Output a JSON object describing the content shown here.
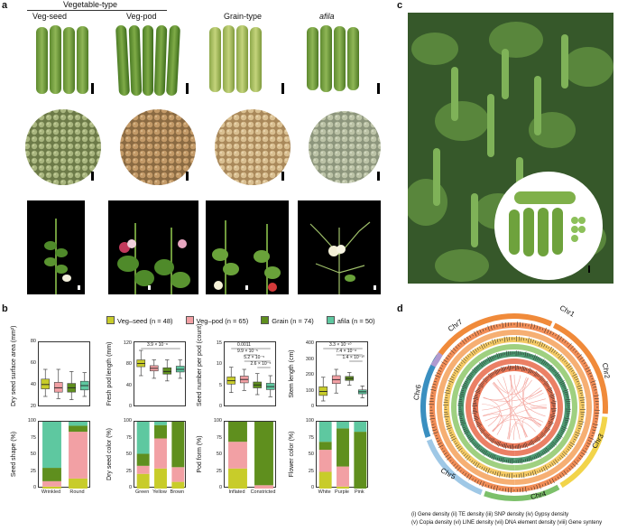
{
  "panel_a": {
    "letter": "a",
    "header_main": "Vegetable-type",
    "columns": [
      "Veg-seed",
      "Veg-pod",
      "Grain-type",
      "afila"
    ]
  },
  "panel_b": {
    "letter": "b",
    "legend": [
      {
        "label": "Veg–seed (n = 48)",
        "color": "#c8cc2a"
      },
      {
        "label": "Veg–pod (n = 65)",
        "color": "#f2a0a4"
      },
      {
        "label": "Grain (n = 74)",
        "color": "#5f8f1e"
      },
      {
        "label": "afila (n = 50)",
        "color": "#5ec8a0"
      }
    ]
  },
  "panel_c": {
    "letter": "c"
  },
  "panel_d": {
    "letter": "d",
    "chromosomes": [
      "Chr1",
      "Chr2",
      "Chr3",
      "Chr4",
      "Chr5",
      "Chr6",
      "Chr7"
    ],
    "track_labels": [
      "(i)",
      "(ii)",
      "(iii)",
      "(iv)",
      "(v)",
      "(vi)",
      "(vii)",
      "(viii)"
    ],
    "caption_line1": "(i) Gene density   (ii) TE density   (iii) SNP density   (iv) Gypsy density",
    "caption_line2": "(v) Copia density (vi) LINE density (vii) DNA element density  (viii) Gene synteny"
  },
  "chart_data": [
    {
      "type": "box",
      "ylabel": "Dry seed surface area (mm²)",
      "ylim": [
        20,
        80
      ],
      "yticks": [
        20,
        40,
        60,
        80
      ],
      "groups": [
        {
          "min": 30,
          "q1": 37,
          "median": 41,
          "q3": 46,
          "max": 55
        },
        {
          "min": 28,
          "q1": 34,
          "median": 38,
          "q3": 43,
          "max": 55
        },
        {
          "min": 27,
          "q1": 34,
          "median": 38,
          "q3": 42,
          "max": 53
        },
        {
          "min": 30,
          "q1": 36,
          "median": 40,
          "q3": 44,
          "max": 52
        }
      ],
      "pvalues": []
    },
    {
      "type": "box",
      "ylabel": "Fresh pod length (mm)",
      "ylim": [
        0,
        120
      ],
      "yticks": [
        0,
        40,
        80,
        120
      ],
      "groups": [
        {
          "min": 60,
          "q1": 77,
          "median": 83,
          "q3": 90,
          "max": 108
        },
        {
          "min": 55,
          "q1": 69,
          "median": 74,
          "q3": 79,
          "max": 90
        },
        {
          "min": 50,
          "q1": 63,
          "median": 68,
          "q3": 75,
          "max": 90
        },
        {
          "min": 55,
          "q1": 67,
          "median": 72,
          "q3": 78,
          "max": 90
        }
      ],
      "pvalues": [
        {
          "text": "3.9 × 10⁻⁸",
          "from": 0,
          "to": 3
        }
      ]
    },
    {
      "type": "box",
      "ylabel": "Seed number per pod (count)",
      "ylim": [
        0,
        15
      ],
      "yticks": [
        0,
        5,
        10,
        15
      ],
      "groups": [
        {
          "min": 3.5,
          "q1": 5.5,
          "median": 6.3,
          "q3": 7.2,
          "max": 9.5
        },
        {
          "min": 4,
          "q1": 5.8,
          "median": 6.6,
          "q3": 7.4,
          "max": 9
        },
        {
          "min": 3,
          "q1": 4.6,
          "median": 5.3,
          "q3": 6,
          "max": 8
        },
        {
          "min": 2.5,
          "q1": 4.2,
          "median": 4.9,
          "q3": 5.7,
          "max": 7.5
        }
      ],
      "pvalues": [
        {
          "text": "0.0011",
          "from": 0,
          "to": 3
        },
        {
          "text": "9.9 × 10⁻⁵",
          "from": 1,
          "to": 2
        },
        {
          "text": "5.2 × 10⁻⁵",
          "from": 1,
          "to": 3
        },
        {
          "text": "2.6 × 10⁻⁵",
          "from": 2,
          "to": 3
        }
      ]
    },
    {
      "type": "box",
      "ylabel": "Stem length (cm)",
      "ylim": [
        0,
        400
      ],
      "yticks": [
        0,
        100,
        200,
        300,
        400
      ],
      "groups": [
        {
          "min": 40,
          "q1": 75,
          "median": 100,
          "q3": 130,
          "max": 190
        },
        {
          "min": 90,
          "q1": 150,
          "median": 175,
          "q3": 200,
          "max": 240
        },
        {
          "min": 140,
          "q1": 170,
          "median": 182,
          "q3": 195,
          "max": 220
        },
        {
          "min": 60,
          "q1": 85,
          "median": 98,
          "q3": 110,
          "max": 135
        }
      ],
      "pvalues": [
        {
          "text": "3.3 × 10⁻¹⁰",
          "from": 0,
          "to": 3
        },
        {
          "text": "7.4 × 10⁻⁸",
          "from": 1,
          "to": 3
        },
        {
          "text": "1.4 × 10⁻¹⁰",
          "from": 2,
          "to": 3
        }
      ]
    },
    {
      "type": "stacked-bar",
      "ylabel": "Seed shape (%)",
      "categories": [
        "Wrinkled",
        "Round"
      ],
      "yticks": [
        0,
        25,
        50,
        75,
        100
      ],
      "values": [
        [
          3,
          8,
          20,
          69
        ],
        [
          15,
          70,
          9,
          6
        ]
      ]
    },
    {
      "type": "stacked-bar",
      "ylabel": "Dry seed color (%)",
      "categories": [
        "Green",
        "Yellow",
        "Brown"
      ],
      "yticks": [
        0,
        25,
        50,
        75,
        100
      ],
      "values": [
        [
          22,
          12,
          18,
          48
        ],
        [
          30,
          45,
          20,
          5
        ],
        [
          10,
          22,
          68,
          0
        ]
      ]
    },
    {
      "type": "stacked-bar",
      "ylabel": "Pod form (%)",
      "categories": [
        "Inflated",
        "Constricted"
      ],
      "yticks": [
        0,
        25,
        50,
        75,
        100
      ],
      "values": [
        [
          30,
          40,
          30,
          0
        ],
        [
          0,
          5,
          95,
          0
        ]
      ]
    },
    {
      "type": "stacked-bar",
      "ylabel": "Flower color (%)",
      "categories": [
        "White",
        "Purple",
        "Pink"
      ],
      "yticks": [
        0,
        25,
        50,
        75,
        100
      ],
      "values": [
        [
          25,
          33,
          12,
          30
        ],
        [
          3,
          30,
          57,
          10
        ],
        [
          0,
          0,
          85,
          15
        ]
      ]
    }
  ]
}
